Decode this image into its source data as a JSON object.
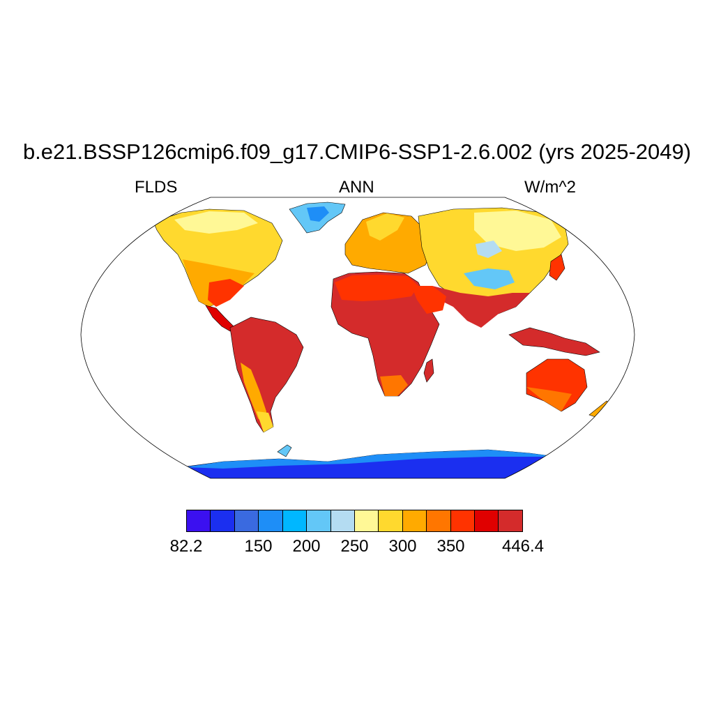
{
  "title": "b.e21.BSSP126cmip6.f09_g17.CMIP6-SSP1-2.6.002 (yrs 2025-2049)",
  "left_string": "FLDS",
  "center_string": "ANN",
  "right_string": "W/m^2",
  "map": {
    "projection": "Robinson",
    "variable": "FLDS",
    "units": "W/m^2",
    "regions": [
      {
        "name": "tropics",
        "level": "high"
      },
      {
        "name": "antarctica",
        "level": "low"
      },
      {
        "name": "greenland",
        "level": "low"
      },
      {
        "name": "tibetan-plateau",
        "level": "low"
      }
    ]
  },
  "colorbar": {
    "colors": [
      "#3b10f0",
      "#1b2ff0",
      "#3a6ae0",
      "#1e8ef7",
      "#00b7ff",
      "#63c7f7",
      "#b4dcf2",
      "#fff896",
      "#ffd92e",
      "#ffaa00",
      "#ff7600",
      "#ff3300",
      "#e00000",
      "#d42b2b"
    ],
    "labels": [
      {
        "text": "82.2",
        "index": 0
      },
      {
        "text": "150",
        "index": 3
      },
      {
        "text": "200",
        "index": 5
      },
      {
        "text": "250",
        "index": 7
      },
      {
        "text": "300",
        "index": 9
      },
      {
        "text": "350",
        "index": 11
      },
      {
        "text": "446.4",
        "index": 14
      }
    ]
  }
}
